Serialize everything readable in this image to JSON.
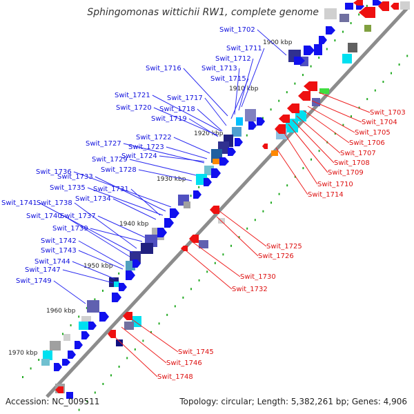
{
  "header": {
    "title": "Sphingomonas wittichii RW1, complete genome"
  },
  "footer": {
    "accession": "Accession: NC_009511",
    "summary": "Topology: circular; Length: 5,382,261 bp; Genes: 4,906"
  },
  "colors": {
    "backbone": "#8c8c8c",
    "forward_gene": "#1010ee",
    "reverse_gene": "#ee1010",
    "forward_label": "#1010dd",
    "reverse_label": "#dd1010",
    "tick_green": "#22aa22"
  },
  "scale_labels": [
    "1900 kbp",
    "1910 kbp",
    "1920 kbp",
    "1930 kbp",
    "1940 kbp",
    "1950 kbp",
    "1960 kbp",
    "1970 kbp"
  ],
  "forward_genes": [
    "Swit_1702",
    "Swit_1711",
    "Swit_1712",
    "Swit_1713",
    "Swit_1716",
    "Swit_1715",
    "Swit_1721",
    "Swit_1717",
    "Swit_1720",
    "Swit_1718",
    "Swit_1719",
    "Swit_1722",
    "Swit_1727",
    "Swit_1723",
    "Swit_1724",
    "Swit_1729",
    "Swit_1728",
    "Swit_1736",
    "Swit_1733",
    "Swit_1735",
    "Swit_1731",
    "Swit_1734",
    "Swit_1741",
    "Swit_1738",
    "Swit_1740",
    "Swit_1737",
    "Swit_1739",
    "Swit_1742",
    "Swit_1743",
    "Swit_1744",
    "Swit_1747",
    "Swit_1749"
  ],
  "reverse_genes": [
    "Swit_1703",
    "Swit_1704",
    "Swit_1705",
    "Swit_1706",
    "Swit_1707",
    "Swit_1708",
    "Swit_1709",
    "Swit_1710",
    "Swit_1714",
    "Swit_1725",
    "Swit_1726",
    "Swit_1730",
    "Swit_1732",
    "Swit_1745",
    "Swit_1746",
    "Swit_1748"
  ]
}
